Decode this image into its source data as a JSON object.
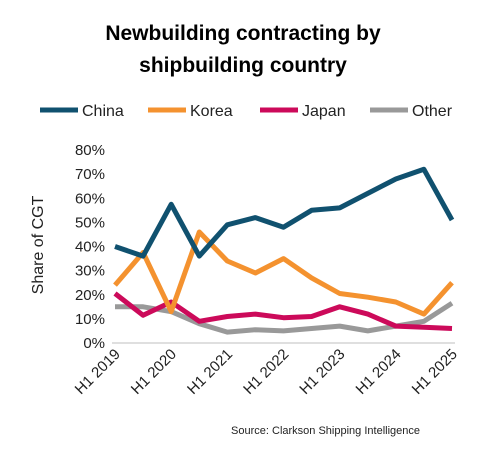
{
  "chart_data": {
    "type": "line",
    "title_lines": [
      "Newbuilding contracting by",
      "shipbuilding country"
    ],
    "ylabel": "Share of CGT",
    "xlabel": "",
    "ylim": [
      0,
      80
    ],
    "y_ticks": [
      "0%",
      "10%",
      "20%",
      "30%",
      "40%",
      "50%",
      "60%",
      "70%",
      "80%"
    ],
    "x": [
      "H1 2019",
      "H2 2019",
      "H1 2020",
      "H2 2020",
      "H1 2021",
      "H2 2021",
      "H1 2022",
      "H2 2022",
      "H1 2023",
      "H2 2023",
      "H1 2024",
      "H2 2024",
      "H1 2025"
    ],
    "x_tick_labels": [
      "H1 2019",
      "H1 2020",
      "H1 2021",
      "H1 2022",
      "H1 2023",
      "H1 2024",
      "H1 2025"
    ],
    "grid": false,
    "legend_position": "top",
    "series": [
      {
        "name": "China",
        "color": "#10516f",
        "values": [
          40,
          36,
          57.5,
          36,
          49,
          52,
          48,
          55,
          56,
          62,
          68,
          72,
          51
        ]
      },
      {
        "name": "Korea",
        "color": "#f4922f",
        "values": [
          24,
          37.5,
          13,
          46,
          34,
          29,
          35,
          27,
          20.5,
          19,
          17,
          12,
          25
        ]
      },
      {
        "name": "Japan",
        "color": "#cc0a5a",
        "values": [
          20.5,
          11.5,
          17,
          9,
          11,
          12,
          10.5,
          11,
          15,
          12,
          7,
          6.5,
          6
        ]
      },
      {
        "name": "Other",
        "color": "#999999",
        "values": [
          15,
          15,
          13,
          8,
          4.5,
          5.5,
          5,
          6,
          7,
          5,
          7,
          9,
          16.5
        ]
      }
    ],
    "source": "Source: Clarkson Shipping Intelligence"
  }
}
